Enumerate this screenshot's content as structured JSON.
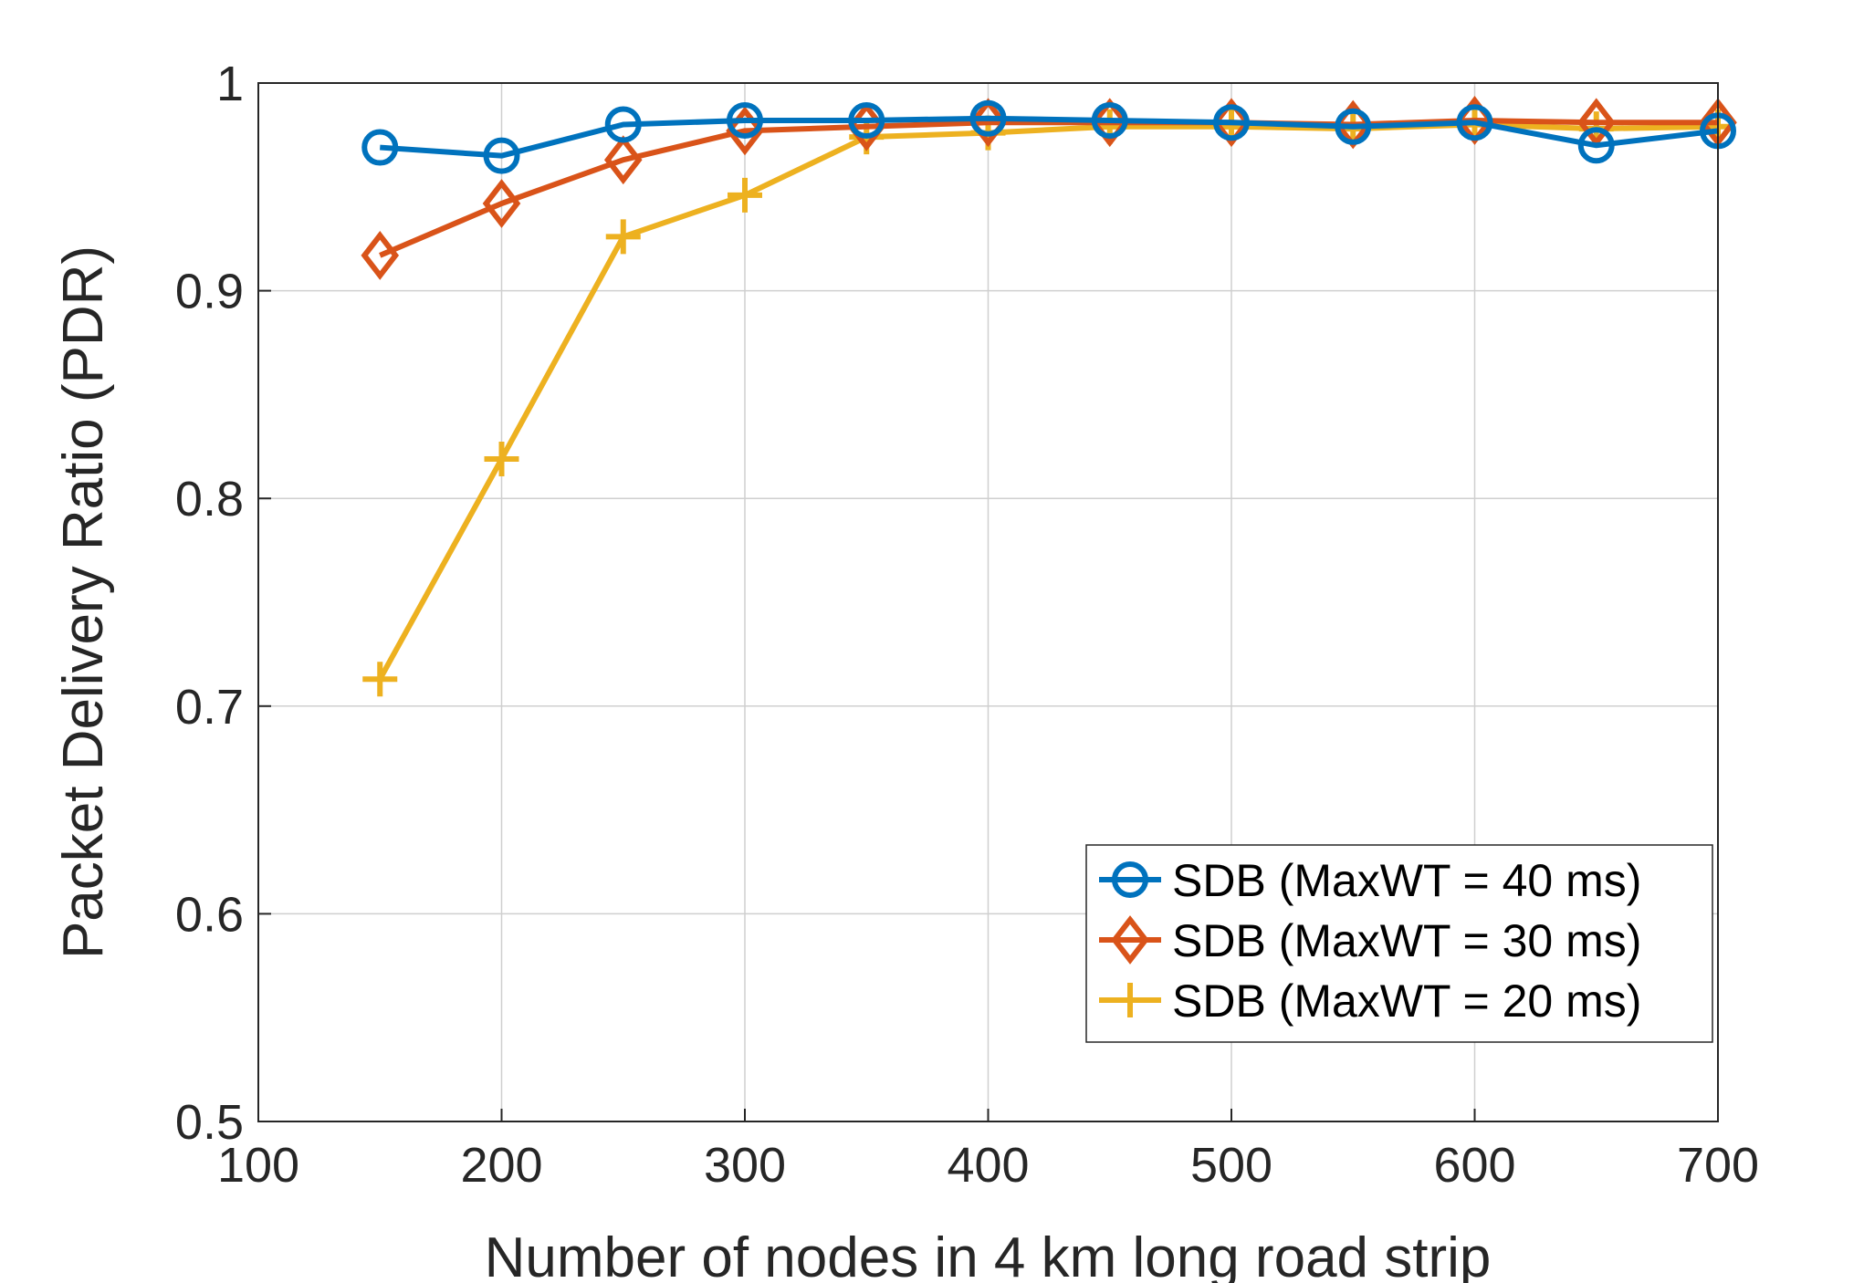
{
  "chart_data": {
    "type": "line",
    "title": "",
    "xlabel": "Number of nodes in 4 km long road strip",
    "ylabel": "Packet Delivery Ratio (PDR)",
    "xlim": [
      100,
      700
    ],
    "ylim": [
      0.5,
      1
    ],
    "x_ticks": [
      100,
      200,
      300,
      400,
      500,
      600,
      700
    ],
    "y_ticks": [
      0.5,
      0.6,
      0.7,
      0.8,
      0.9,
      1
    ],
    "x_tick_labels": [
      "100",
      "200",
      "300",
      "400",
      "500",
      "600",
      "700"
    ],
    "y_tick_labels": [
      "0.5",
      "0.6",
      "0.7",
      "0.8",
      "0.9",
      "1"
    ],
    "grid": true,
    "legend_position": "bottom-right",
    "x": [
      150,
      200,
      250,
      300,
      350,
      400,
      450,
      500,
      550,
      600,
      650,
      700
    ],
    "series": [
      {
        "name": "SDB (MaxWT = 40 ms)",
        "marker": "circle",
        "color": "#0072BD",
        "values": [
          0.969,
          0.965,
          0.98,
          0.982,
          0.982,
          0.983,
          0.982,
          0.981,
          0.979,
          0.981,
          0.97,
          0.977
        ]
      },
      {
        "name": "SDB (MaxWT = 30 ms)",
        "marker": "diamond",
        "color": "#D95319",
        "values": [
          0.917,
          0.942,
          0.963,
          0.977,
          0.979,
          0.981,
          0.981,
          0.981,
          0.98,
          0.982,
          0.981,
          0.981
        ]
      },
      {
        "name": "SDB (MaxWT = 20 ms)",
        "marker": "plus",
        "color": "#EDB120",
        "values": [
          0.713,
          0.819,
          0.926,
          0.946,
          0.974,
          0.976,
          0.979,
          0.979,
          0.978,
          0.98,
          0.978,
          0.979
        ]
      }
    ]
  }
}
